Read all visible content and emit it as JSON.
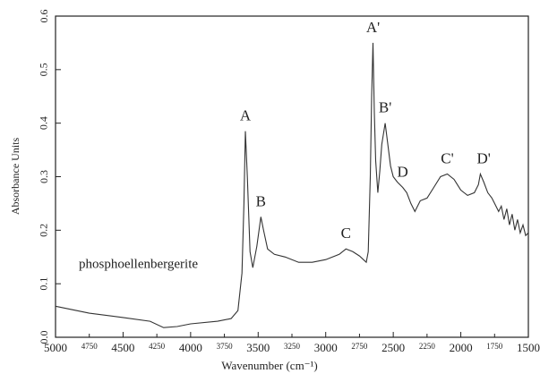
{
  "chart_data": {
    "type": "line",
    "xlabel": "Wavenumber (cm⁻¹)",
    "ylabel": "Absorbance Units",
    "x": [
      5000,
      4750,
      4500,
      4300,
      4200,
      4100,
      4000,
      3800,
      3700,
      3650,
      3620,
      3605,
      3595,
      3580,
      3560,
      3540,
      3510,
      3480,
      3460,
      3430,
      3380,
      3300,
      3200,
      3100,
      3000,
      2900,
      2850,
      2800,
      2750,
      2700,
      2685,
      2670,
      2660,
      2650,
      2640,
      2630,
      2614,
      2600,
      2585,
      2560,
      2540,
      2520,
      2500,
      2470,
      2430,
      2400,
      2370,
      2340,
      2300,
      2250,
      2200,
      2150,
      2100,
      2050,
      2000,
      1950,
      1900,
      1870,
      1855,
      1830,
      1800,
      1770,
      1750,
      1720,
      1700,
      1680,
      1660,
      1640,
      1620,
      1600,
      1580,
      1560,
      1540,
      1520,
      1500
    ],
    "series": [
      {
        "name": "phosphoellenbergerite",
        "color": "#333333",
        "values": [
          0.058,
          0.045,
          0.037,
          0.03,
          0.018,
          0.02,
          0.025,
          0.03,
          0.035,
          0.05,
          0.12,
          0.25,
          0.385,
          0.3,
          0.16,
          0.13,
          0.17,
          0.225,
          0.2,
          0.165,
          0.155,
          0.15,
          0.14,
          0.14,
          0.145,
          0.155,
          0.165,
          0.16,
          0.152,
          0.14,
          0.16,
          0.3,
          0.45,
          0.55,
          0.42,
          0.33,
          0.27,
          0.31,
          0.36,
          0.4,
          0.36,
          0.32,
          0.3,
          0.29,
          0.28,
          0.27,
          0.25,
          0.235,
          0.255,
          0.26,
          0.28,
          0.3,
          0.305,
          0.295,
          0.275,
          0.265,
          0.27,
          0.285,
          0.305,
          0.29,
          0.27,
          0.26,
          0.25,
          0.235,
          0.245,
          0.22,
          0.24,
          0.21,
          0.23,
          0.2,
          0.22,
          0.195,
          0.21,
          0.19,
          0.195
        ]
      }
    ],
    "xlim": [
      5000,
      1500
    ],
    "xticks": [
      5000,
      4750,
      4500,
      4250,
      4000,
      3750,
      3500,
      3250,
      3000,
      2750,
      2500,
      2250,
      2000,
      1750,
      1500
    ],
    "ylim": [
      0,
      0.6
    ],
    "yticks": [
      {
        "value": 0,
        "label": "0.0"
      },
      0.1,
      0.2,
      0.3,
      0.4,
      0.5,
      0.6
    ],
    "annotations": [
      {
        "text": "A",
        "x": 3595,
        "y": 0.385
      },
      {
        "text": "B",
        "x": 3480,
        "y": 0.225
      },
      {
        "text": "C",
        "x": 2850,
        "y": 0.165
      },
      {
        "text": "A'",
        "x": 2650,
        "y": 0.55
      },
      {
        "text": "B'",
        "x": 2560,
        "y": 0.4
      },
      {
        "text": "D",
        "x": 2430,
        "y": 0.28
      },
      {
        "text": "C'",
        "x": 2100,
        "y": 0.305
      },
      {
        "text": "D'",
        "x": 1830,
        "y": 0.305
      }
    ]
  }
}
